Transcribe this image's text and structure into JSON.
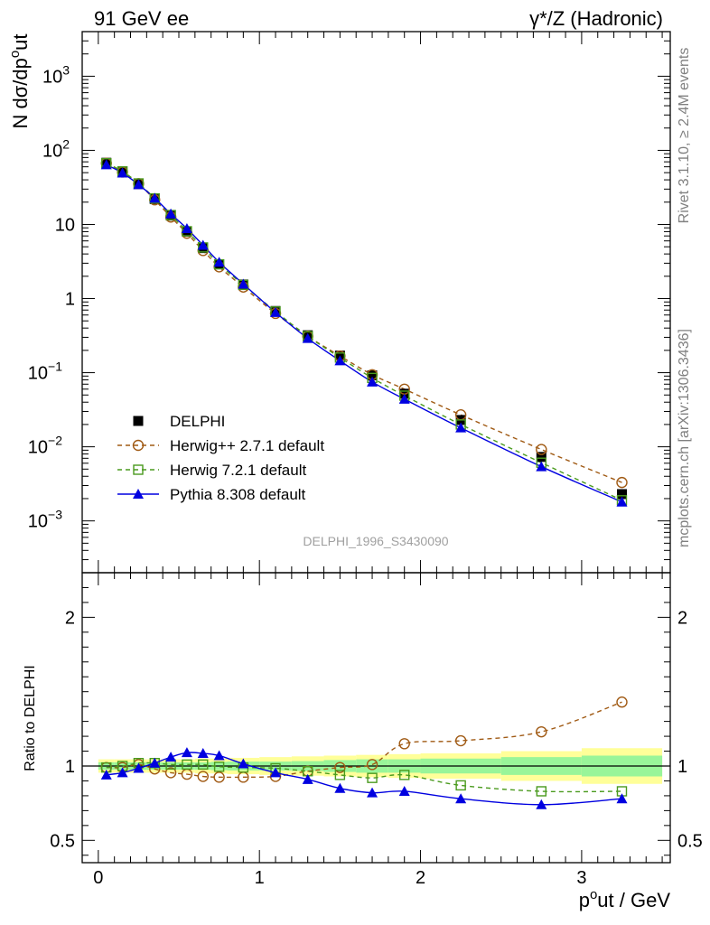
{
  "header": {
    "left": "91 GeV ee",
    "right": "γ*/Z (Hadronic)"
  },
  "side_labels": {
    "rivet": "Rivet 3.1.10, ≥ 2.4M events",
    "mcplots": "mcplots.cern.ch [arXiv:1306.3436]"
  },
  "watermark": "DELPHI_1996_S3430090",
  "chart_data": [
    {
      "type": "line",
      "panel": "main",
      "ylabel": "N dσ/dpₜᵒut",
      "yscale": "log",
      "ylim": [
        0.0002,
        4000
      ],
      "xlim": [
        -0.1,
        3.55
      ],
      "yticks": [
        {
          "value": 0.001,
          "mant": "10",
          "exp": "−3"
        },
        {
          "value": 0.01,
          "mant": "10",
          "exp": "−2"
        },
        {
          "value": 0.1,
          "mant": "10",
          "exp": "−1"
        },
        {
          "value": 1,
          "mant": "1",
          "exp": ""
        },
        {
          "value": 10,
          "mant": "10",
          "exp": ""
        },
        {
          "value": 100,
          "mant": "10",
          "exp": "2"
        },
        {
          "value": 1000,
          "mant": "10",
          "exp": "3"
        }
      ],
      "x": [
        0.05,
        0.15,
        0.25,
        0.35,
        0.45,
        0.55,
        0.65,
        0.75,
        0.9,
        1.1,
        1.3,
        1.5,
        1.7,
        1.9,
        2.25,
        2.75,
        3.25
      ],
      "series": [
        {
          "name": "DELPHI",
          "style": "data",
          "color": "#000000",
          "values": [
            68,
            52,
            35,
            22,
            13.2,
            8.0,
            4.8,
            2.9,
            1.55,
            0.68,
            0.32,
            0.17,
            0.092,
            0.052,
            0.023,
            0.0073,
            0.0023
          ]
        },
        {
          "name": "Herwig++ 2.7.1 default",
          "style": "circle-dashed",
          "color": "#a05a14",
          "values": [
            67,
            51,
            35.5,
            21.5,
            12.6,
            7.6,
            4.45,
            2.68,
            1.43,
            0.63,
            0.31,
            0.168,
            0.094,
            0.06,
            0.027,
            0.0092,
            0.0033
          ]
        },
        {
          "name": "Herwig 7.2.1 default",
          "style": "square-dashed",
          "color": "#4a9a1e",
          "values": [
            67,
            52,
            35.8,
            22.5,
            13.4,
            8.1,
            4.9,
            2.9,
            1.53,
            0.67,
            0.31,
            0.16,
            0.085,
            0.049,
            0.02,
            0.0061,
            0.0019
          ]
        },
        {
          "name": "Pythia 8.308 default",
          "style": "triangle-solid",
          "color": "#0000e0",
          "values": [
            64,
            49.5,
            34.5,
            22.6,
            13.9,
            8.8,
            5.25,
            3.1,
            1.57,
            0.65,
            0.29,
            0.145,
            0.075,
            0.044,
            0.018,
            0.0054,
            0.0018
          ]
        }
      ],
      "legend": {
        "placement": "lower-left"
      }
    },
    {
      "type": "line",
      "panel": "ratio",
      "ylabel": "Ratio to DELPHI",
      "xlabel": "pₜᵒut / GeV",
      "ylim": [
        0.35,
        2.3
      ],
      "xlim": [
        -0.1,
        3.55
      ],
      "yticks": [
        {
          "value": 0.5,
          "label": "0.5"
        },
        {
          "value": 1,
          "label": "1"
        },
        {
          "value": 2,
          "label": "2"
        }
      ],
      "xticks": [
        {
          "value": 0,
          "label": "0"
        },
        {
          "value": 1,
          "label": "1"
        },
        {
          "value": 2,
          "label": "2"
        },
        {
          "value": 3,
          "label": "3"
        }
      ],
      "x": [
        0.05,
        0.15,
        0.25,
        0.35,
        0.45,
        0.55,
        0.65,
        0.75,
        0.9,
        1.1,
        1.3,
        1.5,
        1.7,
        1.9,
        2.25,
        2.75,
        3.25
      ],
      "bins": [
        [
          0.0,
          0.1
        ],
        [
          0.1,
          0.2
        ],
        [
          0.2,
          0.3
        ],
        [
          0.3,
          0.4
        ],
        [
          0.4,
          0.5
        ],
        [
          0.5,
          0.6
        ],
        [
          0.6,
          0.7
        ],
        [
          0.7,
          0.8
        ],
        [
          0.8,
          1.0
        ],
        [
          1.0,
          1.2
        ],
        [
          1.2,
          1.4
        ],
        [
          1.4,
          1.6
        ],
        [
          1.6,
          1.8
        ],
        [
          1.8,
          2.0
        ],
        [
          2.0,
          2.5
        ],
        [
          2.5,
          3.0
        ],
        [
          3.0,
          3.5
        ]
      ],
      "band_stat": [
        0.025,
        0.025,
        0.025,
        0.025,
        0.025,
        0.025,
        0.025,
        0.028,
        0.03,
        0.03,
        0.033,
        0.04,
        0.045,
        0.045,
        0.05,
        0.06,
        0.07
      ],
      "band_total": [
        0.045,
        0.045,
        0.045,
        0.045,
        0.045,
        0.045,
        0.05,
        0.05,
        0.055,
        0.06,
        0.065,
        0.07,
        0.075,
        0.08,
        0.085,
        0.1,
        0.12
      ],
      "band_colors": {
        "total": "#ffff99",
        "stat": "#99f599"
      },
      "series": [
        {
          "name": "Herwig++ 2.7.1 default",
          "style": "circle-dashed",
          "color": "#a05a14",
          "values": [
            0.99,
            0.99,
            1.01,
            0.98,
            0.955,
            0.945,
            0.93,
            0.925,
            0.925,
            0.93,
            0.965,
            0.99,
            1.01,
            1.15,
            1.17,
            1.23,
            1.43
          ]
        },
        {
          "name": "Herwig 7.2.1 default",
          "style": "square-dashed",
          "color": "#4a9a1e",
          "values": [
            0.99,
            1.0,
            1.02,
            1.02,
            1.01,
            1.01,
            1.01,
            0.995,
            0.99,
            0.985,
            0.965,
            0.94,
            0.92,
            0.94,
            0.87,
            0.83,
            0.83
          ]
        },
        {
          "name": "Pythia 8.308 default",
          "style": "triangle-solid",
          "color": "#0000e0",
          "values": [
            0.94,
            0.955,
            0.985,
            1.02,
            1.06,
            1.09,
            1.085,
            1.07,
            1.015,
            0.955,
            0.91,
            0.85,
            0.82,
            0.83,
            0.78,
            0.74,
            0.78
          ]
        }
      ]
    }
  ]
}
